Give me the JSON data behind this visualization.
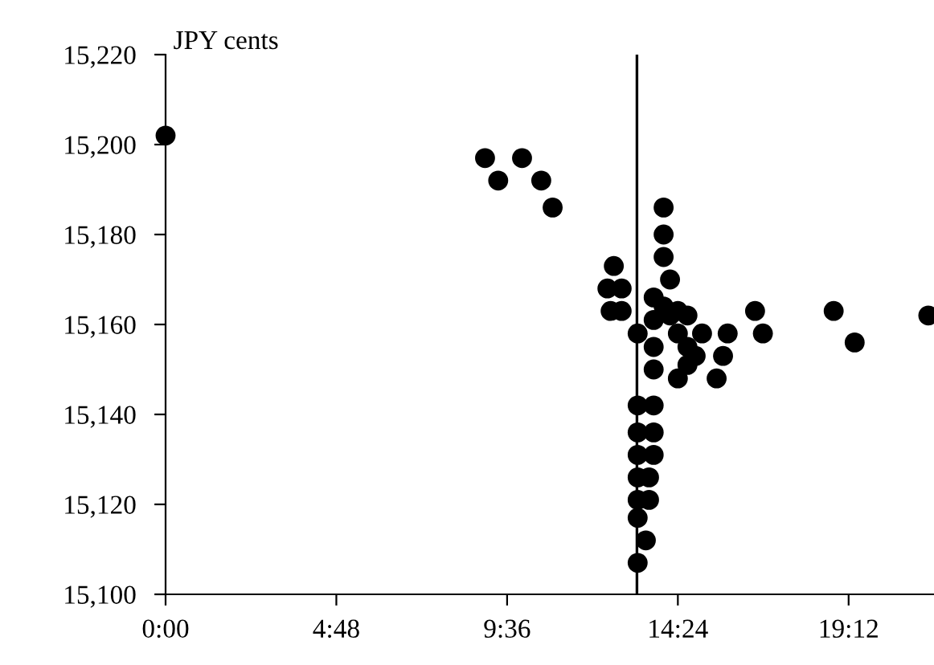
{
  "chart_data": {
    "type": "scatter",
    "ylabel": "JPY cents",
    "marker": "circle",
    "grid": false,
    "legend": false,
    "xlim": [
      0,
      21.6
    ],
    "xticks": [
      {
        "value": 0,
        "label": "0:00"
      },
      {
        "value": 4.8,
        "label": "4:48"
      },
      {
        "value": 9.6,
        "label": "9:36"
      },
      {
        "value": 14.4,
        "label": "14:24"
      },
      {
        "value": 19.2,
        "label": "19:12"
      }
    ],
    "ylim": [
      15100,
      15220
    ],
    "yticks": [
      {
        "value": 15100,
        "label": "15,100"
      },
      {
        "value": 15120,
        "label": "15,120"
      },
      {
        "value": 15140,
        "label": "15,140"
      },
      {
        "value": 15160,
        "label": "15,160"
      },
      {
        "value": 15180,
        "label": "15,180"
      },
      {
        "value": 15200,
        "label": "15,200"
      },
      {
        "value": 15220,
        "label": "15,220"
      }
    ],
    "ref_lines": [
      {
        "axis": "x",
        "value": 13.25,
        "label": null,
        "color": "#000000"
      }
    ],
    "series": [
      {
        "color": "#000000",
        "x": [
          0,
          8.98,
          9.35,
          10.02,
          10.56,
          10.88,
          12.6,
          12.42,
          12.82,
          12.51,
          12.82,
          13.27,
          13.27,
          13.27,
          13.27,
          13.27,
          13.27,
          13.27,
          13.27,
          13.72,
          13.72,
          13.72,
          13.59,
          13.59,
          13.5,
          13.72,
          13.72,
          13.72,
          13.72,
          14.0,
          14.0,
          14.0,
          14.0,
          14.18,
          14.18,
          14.4,
          14.4,
          14.4,
          14.67,
          14.67,
          14.67,
          14.9,
          15.08,
          15.49,
          15.67,
          15.8,
          16.57,
          16.79,
          18.78,
          19.37,
          21.44
        ],
        "values": [
          15202,
          15197,
          15192,
          15197,
          15192,
          15186,
          15173,
          15168,
          15168,
          15163,
          15163,
          15158,
          15142,
          15136,
          15131,
          15126,
          15121,
          15117,
          15107,
          15142,
          15136,
          15131,
          15126,
          15121,
          15112,
          15166,
          15161,
          15155,
          15150,
          15186,
          15180,
          15175,
          15164,
          15170,
          15162,
          15163,
          15158,
          15148,
          15162,
          15155,
          15151,
          15153,
          15158,
          15148,
          15153,
          15158,
          15163,
          15158,
          15163,
          15156,
          15162
        ]
      }
    ]
  }
}
